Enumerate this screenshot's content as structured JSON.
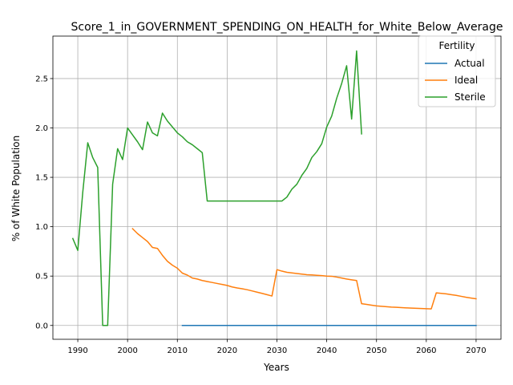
{
  "chart_data": {
    "type": "line",
    "title": "Score_1_in_GOVERNMENT_SPENDING_ON_HEALTH_for_White_Below_Average",
    "xlabel": "Years",
    "ylabel": "% of White Population",
    "xlim": [
      1985,
      2075
    ],
    "ylim": [
      -0.14,
      2.93
    ],
    "x_ticks": [
      1990,
      2000,
      2010,
      2020,
      2030,
      2040,
      2050,
      2060,
      2070
    ],
    "x_tick_labels": [
      "1990",
      "2000",
      "2010",
      "2020",
      "2030",
      "2040",
      "2050",
      "2060",
      "2070"
    ],
    "y_ticks": [
      0.0,
      0.5,
      1.0,
      1.5,
      2.0,
      2.5
    ],
    "y_tick_labels": [
      "0.0",
      "0.5",
      "1.0",
      "1.5",
      "2.0",
      "2.5"
    ],
    "grid": true,
    "legend": {
      "title": "Fertility",
      "placement": "top-right"
    },
    "series": [
      {
        "name": "Actual",
        "color": "#1f77b4",
        "points": [
          [
            2011,
            0.0
          ],
          [
            2070,
            0.0
          ]
        ]
      },
      {
        "name": "Ideal",
        "color": "#ff7f0e",
        "points": [
          [
            2001,
            0.98
          ],
          [
            2002,
            0.93
          ],
          [
            2003,
            0.89
          ],
          [
            2004,
            0.85
          ],
          [
            2005,
            0.79
          ],
          [
            2006,
            0.78
          ],
          [
            2007,
            0.71
          ],
          [
            2008,
            0.65
          ],
          [
            2009,
            0.61
          ],
          [
            2010,
            0.58
          ],
          [
            2011,
            0.53
          ],
          [
            2012,
            0.51
          ],
          [
            2013,
            0.48
          ],
          [
            2014,
            0.47
          ],
          [
            2015,
            0.455
          ],
          [
            2016,
            0.445
          ],
          [
            2017,
            0.435
          ],
          [
            2018,
            0.425
          ],
          [
            2019,
            0.415
          ],
          [
            2020,
            0.405
          ],
          [
            2021,
            0.39
          ],
          [
            2022,
            0.38
          ],
          [
            2023,
            0.372
          ],
          [
            2024,
            0.362
          ],
          [
            2025,
            0.35
          ],
          [
            2026,
            0.337
          ],
          [
            2027,
            0.325
          ],
          [
            2028,
            0.312
          ],
          [
            2029,
            0.298
          ],
          [
            2030,
            0.565
          ],
          [
            2031,
            0.55
          ],
          [
            2032,
            0.538
          ],
          [
            2033,
            0.532
          ],
          [
            2034,
            0.526
          ],
          [
            2035,
            0.52
          ],
          [
            2036,
            0.514
          ],
          [
            2037,
            0.512
          ],
          [
            2038,
            0.508
          ],
          [
            2039,
            0.505
          ],
          [
            2040,
            0.5
          ],
          [
            2041,
            0.498
          ],
          [
            2042,
            0.49
          ],
          [
            2043,
            0.48
          ],
          [
            2044,
            0.47
          ],
          [
            2045,
            0.462
          ],
          [
            2046,
            0.455
          ],
          [
            2047,
            0.22
          ],
          [
            2048,
            0.213
          ],
          [
            2049,
            0.205
          ],
          [
            2050,
            0.198
          ],
          [
            2051,
            0.194
          ],
          [
            2052,
            0.19
          ],
          [
            2053,
            0.186
          ],
          [
            2054,
            0.184
          ],
          [
            2055,
            0.181
          ],
          [
            2056,
            0.178
          ],
          [
            2057,
            0.176
          ],
          [
            2058,
            0.174
          ],
          [
            2059,
            0.172
          ],
          [
            2060,
            0.17
          ],
          [
            2061,
            0.168
          ],
          [
            2062,
            0.33
          ],
          [
            2063,
            0.325
          ],
          [
            2064,
            0.32
          ],
          [
            2065,
            0.312
          ],
          [
            2066,
            0.305
          ],
          [
            2067,
            0.295
          ],
          [
            2068,
            0.285
          ],
          [
            2069,
            0.277
          ],
          [
            2070,
            0.27
          ]
        ]
      },
      {
        "name": "Sterile",
        "color": "#2ca02c",
        "points": [
          [
            1989,
            0.88
          ],
          [
            1990,
            0.76
          ],
          [
            1991,
            1.35
          ],
          [
            1992,
            1.85
          ],
          [
            1993,
            1.7
          ],
          [
            1994,
            1.6
          ],
          [
            1995,
            0.0
          ],
          [
            1996,
            0.0
          ],
          [
            1997,
            1.43
          ],
          [
            1998,
            1.79
          ],
          [
            1999,
            1.68
          ],
          [
            2000,
            2.0
          ],
          [
            2001,
            1.93
          ],
          [
            2002,
            1.86
          ],
          [
            2003,
            1.78
          ],
          [
            2004,
            2.06
          ],
          [
            2005,
            1.95
          ],
          [
            2006,
            1.92
          ],
          [
            2007,
            2.15
          ],
          [
            2008,
            2.07
          ],
          [
            2009,
            2.01
          ],
          [
            2010,
            1.95
          ],
          [
            2011,
            1.91
          ],
          [
            2012,
            1.86
          ],
          [
            2013,
            1.83
          ],
          [
            2014,
            1.79
          ],
          [
            2015,
            1.75
          ],
          [
            2016,
            1.26
          ],
          [
            2017,
            1.26
          ],
          [
            2018,
            1.26
          ],
          [
            2019,
            1.26
          ],
          [
            2020,
            1.26
          ],
          [
            2021,
            1.26
          ],
          [
            2022,
            1.26
          ],
          [
            2023,
            1.26
          ],
          [
            2024,
            1.26
          ],
          [
            2025,
            1.26
          ],
          [
            2026,
            1.26
          ],
          [
            2027,
            1.26
          ],
          [
            2028,
            1.26
          ],
          [
            2029,
            1.26
          ],
          [
            2030,
            1.26
          ],
          [
            2031,
            1.26
          ],
          [
            2032,
            1.3
          ],
          [
            2033,
            1.38
          ],
          [
            2034,
            1.43
          ],
          [
            2035,
            1.52
          ],
          [
            2036,
            1.59
          ],
          [
            2037,
            1.7
          ],
          [
            2038,
            1.76
          ],
          [
            2039,
            1.84
          ],
          [
            2040,
            2.01
          ],
          [
            2041,
            2.12
          ],
          [
            2042,
            2.3
          ],
          [
            2043,
            2.45
          ],
          [
            2044,
            2.63
          ],
          [
            2045,
            2.09
          ],
          [
            2046,
            2.78
          ],
          [
            2047,
            1.94
          ]
        ]
      }
    ]
  }
}
